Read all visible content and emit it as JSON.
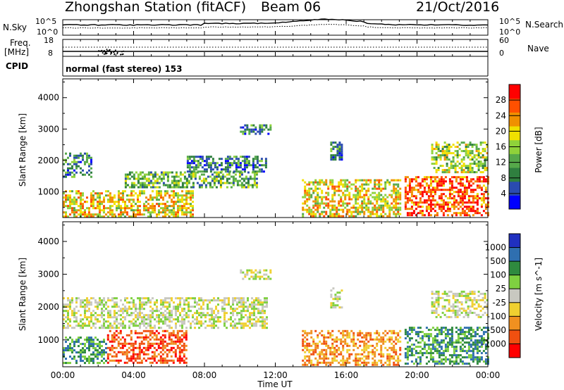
{
  "header": {
    "station": "Zhongshan Station (fitACF)",
    "beam": "Beam 06",
    "date": "21/Oct/2016"
  },
  "nsky_panel": {
    "left_label": "N.Sky",
    "right_label": "N.Search",
    "left_ticks": [
      "10^5",
      "10^0"
    ],
    "right_ticks": [
      "10^5",
      "10^0"
    ]
  },
  "freq_panel": {
    "left_label_line1": "Freq.",
    "left_label_line2": "[MHz]",
    "right_label": "Nave",
    "left_ticks": [
      "18",
      "8"
    ],
    "right_ticks": [
      "60",
      "0"
    ]
  },
  "cpid_panel": {
    "label": "CPID",
    "text": "normal (fast stereo) 153"
  },
  "colors": {
    "power_scale": [
      "#0000ff",
      "#2a4bb0",
      "#2f7f3f",
      "#55a84a",
      "#8fd23a",
      "#f0e000",
      "#f09000",
      "#ff5000",
      "#ff0000"
    ],
    "velocity_scale": [
      "#2030c0",
      "#2f6fb0",
      "#2f8a3f",
      "#7fd040",
      "#c8c8c0",
      "#f0d030",
      "#f09020",
      "#f05010",
      "#ff0000"
    ]
  },
  "chart_data": [
    {
      "type": "heatmap",
      "quantity": "power",
      "xlabel": "",
      "ylabel": "Slant Range [km]",
      "ylim": [
        180,
        4600
      ],
      "yticks": [
        1000,
        2000,
        3000,
        4000
      ],
      "colorbar_label": "Power [dB]",
      "colorbar_ticks": [
        4,
        8,
        12,
        16,
        20,
        24,
        28
      ],
      "colorbar_range": [
        0,
        32
      ],
      "regions": [
        {
          "t": [
            0.0,
            7.3
          ],
          "r": [
            200,
            1050
          ],
          "level": 20
        },
        {
          "t": [
            0.0,
            1.6
          ],
          "r": [
            1500,
            2250
          ],
          "level": 8
        },
        {
          "t": [
            3.5,
            11.0
          ],
          "r": [
            1150,
            1650
          ],
          "level": 12
        },
        {
          "t": [
            7.0,
            11.5
          ],
          "r": [
            1650,
            2150
          ],
          "level": 8
        },
        {
          "t": [
            10.0,
            11.7
          ],
          "r": [
            2850,
            3150
          ],
          "level": 6
        },
        {
          "t": [
            13.5,
            19.0
          ],
          "r": [
            250,
            1400
          ],
          "level": 20
        },
        {
          "t": [
            15.1,
            15.8
          ],
          "r": [
            2000,
            2600
          ],
          "level": 8
        },
        {
          "t": [
            19.3,
            24.0
          ],
          "r": [
            250,
            1500
          ],
          "level": 26
        },
        {
          "t": [
            20.8,
            24.0
          ],
          "r": [
            1600,
            2600
          ],
          "level": 14
        }
      ]
    },
    {
      "type": "heatmap",
      "quantity": "velocity",
      "xlabel": "Time UT",
      "ylabel": "Slant Range [km]",
      "xlim": [
        "00:00",
        "24:00"
      ],
      "xticks": [
        "00:00",
        "04:00",
        "08:00",
        "12:00",
        "16:00",
        "20:00",
        "00:00"
      ],
      "ylim": [
        180,
        4600
      ],
      "yticks": [
        1000,
        2000,
        3000,
        4000
      ],
      "colorbar_label": "Velocity [m s^-1]",
      "colorbar_ticks": [
        "1000",
        "500",
        "100",
        "25",
        "-25",
        "-100",
        "-500",
        "-1000"
      ],
      "regions": [
        {
          "t": [
            0.0,
            2.5
          ],
          "r": [
            300,
            1100
          ],
          "level": "100"
        },
        {
          "t": [
            2.5,
            7.0
          ],
          "r": [
            300,
            1300
          ],
          "level": "-500"
        },
        {
          "t": [
            0.0,
            11.5
          ],
          "r": [
            1350,
            2300
          ],
          "level": "0"
        },
        {
          "t": [
            10.0,
            11.7
          ],
          "r": [
            2850,
            3150
          ],
          "level": "0"
        },
        {
          "t": [
            13.5,
            19.0
          ],
          "r": [
            250,
            1300
          ],
          "level": "-100"
        },
        {
          "t": [
            15.1,
            15.8
          ],
          "r": [
            2000,
            2600
          ],
          "level": "0"
        },
        {
          "t": [
            19.3,
            24.0
          ],
          "r": [
            300,
            1400
          ],
          "level": "100"
        },
        {
          "t": [
            20.8,
            24.0
          ],
          "r": [
            1700,
            2500
          ],
          "level": "0"
        }
      ]
    }
  ]
}
